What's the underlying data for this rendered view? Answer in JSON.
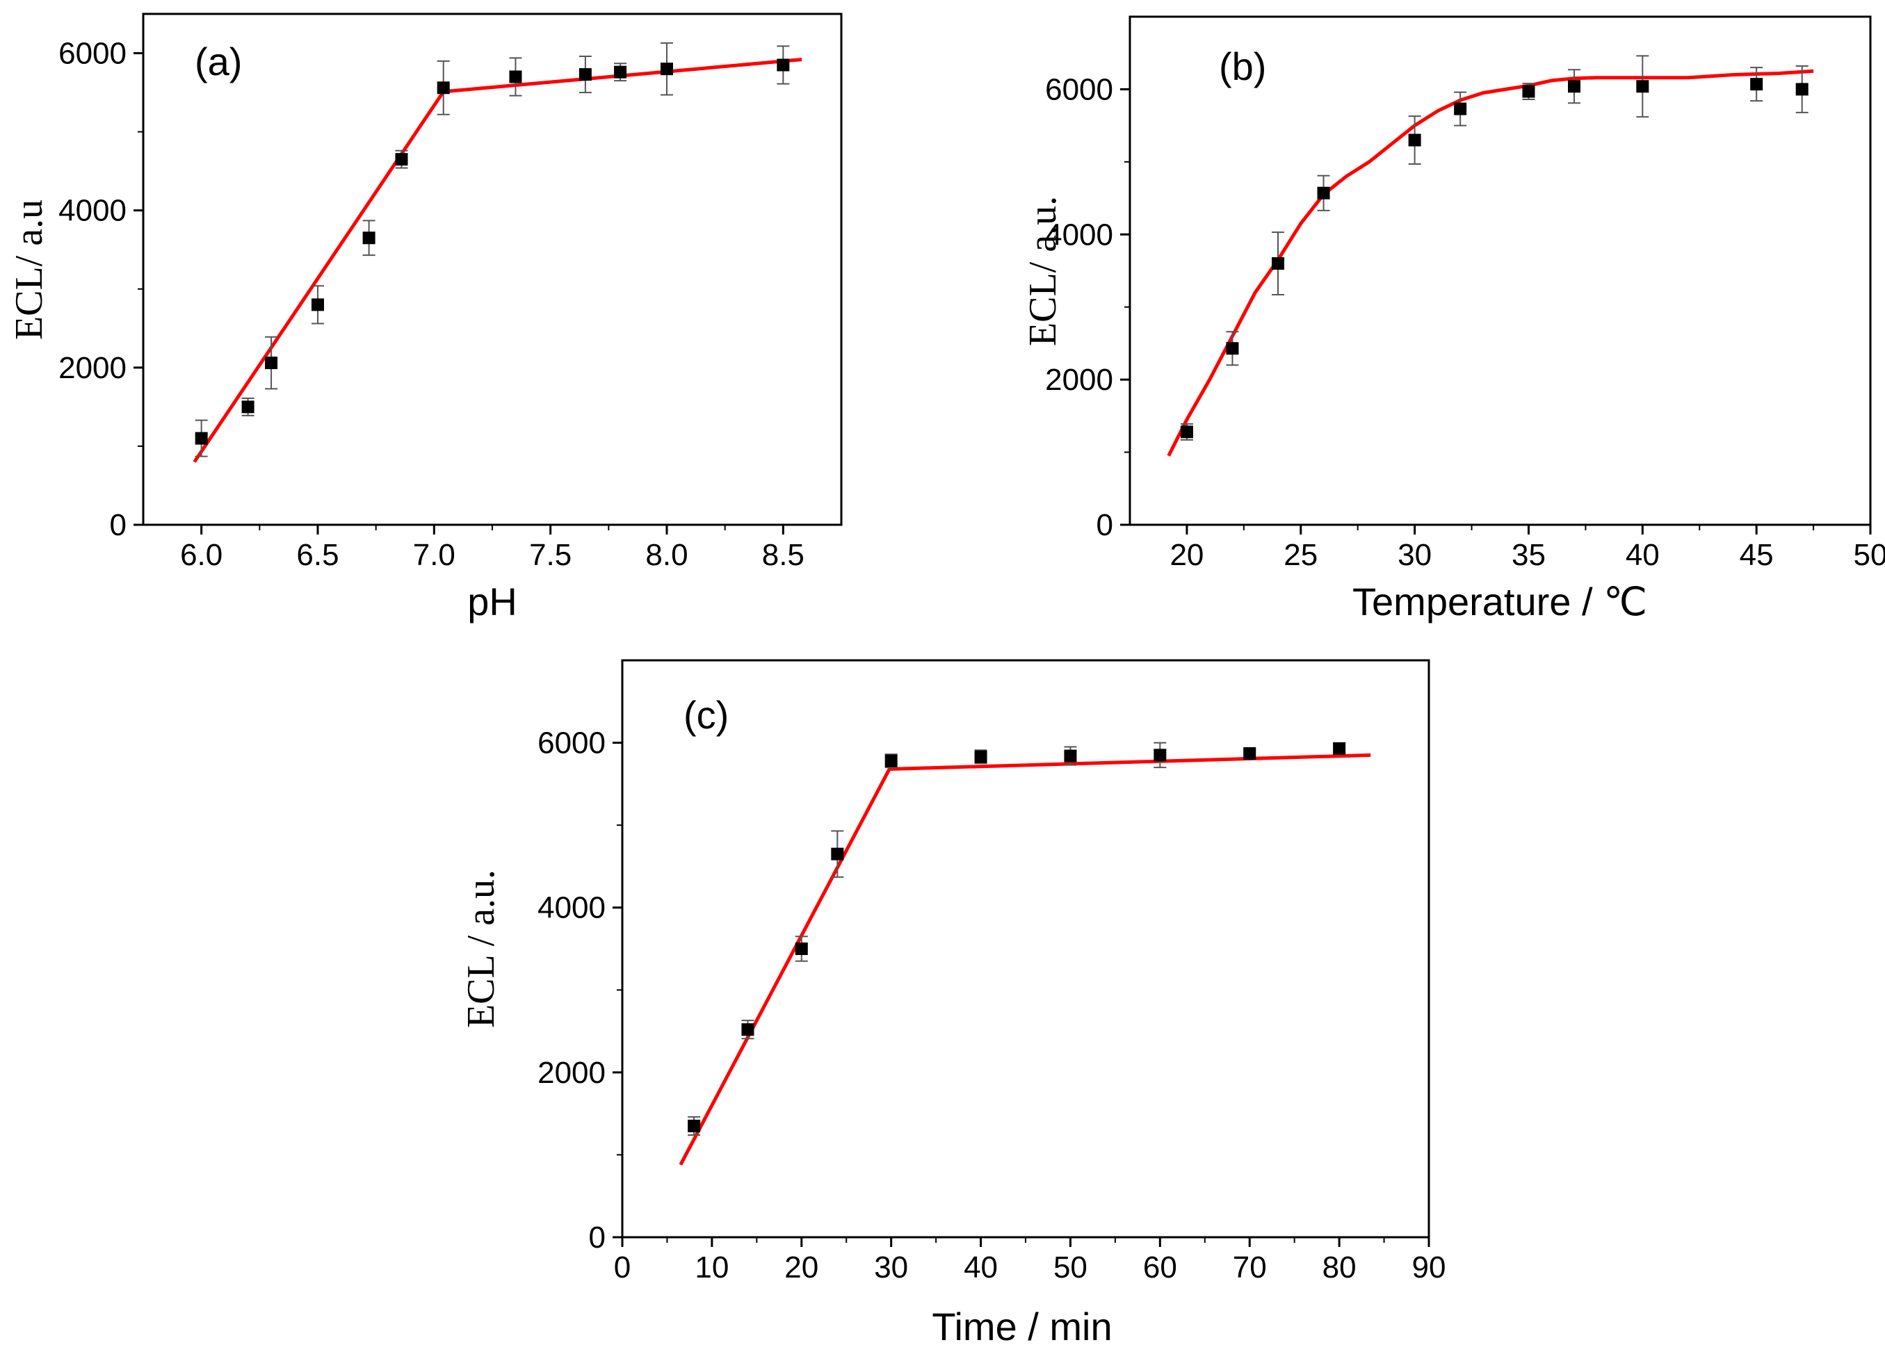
{
  "chart_data": [
    {
      "id": "a",
      "type": "scatter",
      "panel_label": "(a)",
      "xlabel": "pH",
      "ylabel": "ECL/ a.u",
      "xlim": [
        5.75,
        8.75
      ],
      "ylim": [
        0,
        6500
      ],
      "x_ticks": [
        6.0,
        6.5,
        7.0,
        7.5,
        8.0,
        8.5
      ],
      "x_tick_labels": [
        "6.0",
        "6.5",
        "7.0",
        "7.5",
        "8.0",
        "8.5"
      ],
      "y_ticks": [
        0,
        2000,
        4000,
        6000
      ],
      "y_tick_labels": [
        "0",
        "2000",
        "4000",
        "6000"
      ],
      "marker_color": "#000000",
      "fit_color": "#ff0000",
      "points": [
        {
          "x": 6.0,
          "y": 1100,
          "err": 230
        },
        {
          "x": 6.2,
          "y": 1500,
          "err": 110
        },
        {
          "x": 6.3,
          "y": 2060,
          "err": 330
        },
        {
          "x": 6.5,
          "y": 2800,
          "err": 240
        },
        {
          "x": 6.72,
          "y": 3650,
          "err": 220
        },
        {
          "x": 6.86,
          "y": 4650,
          "err": 110
        },
        {
          "x": 7.04,
          "y": 5560,
          "err": 340
        },
        {
          "x": 7.35,
          "y": 5700,
          "err": 240
        },
        {
          "x": 7.65,
          "y": 5730,
          "err": 230
        },
        {
          "x": 7.8,
          "y": 5760,
          "err": 110
        },
        {
          "x": 8.0,
          "y": 5800,
          "err": 330
        },
        {
          "x": 8.5,
          "y": 5850,
          "err": 240
        }
      ],
      "fit_line": [
        [
          5.97,
          800
        ],
        [
          7.04,
          5510
        ],
        [
          8.58,
          5920
        ]
      ]
    },
    {
      "id": "b",
      "type": "scatter",
      "panel_label": "(b)",
      "xlabel": "Temperature / ℃",
      "ylabel": "ECL/ a.u.",
      "xlim": [
        17.5,
        50
      ],
      "ylim": [
        0,
        7000
      ],
      "x_ticks": [
        20,
        25,
        30,
        35,
        40,
        45,
        50
      ],
      "x_tick_labels": [
        "20",
        "25",
        "30",
        "35",
        "40",
        "45",
        "50"
      ],
      "y_ticks": [
        0,
        2000,
        4000,
        6000
      ],
      "y_tick_labels": [
        "0",
        "2000",
        "4000",
        "6000"
      ],
      "marker_color": "#000000",
      "fit_color": "#ff0000",
      "points": [
        {
          "x": 20,
          "y": 1280,
          "err": 110
        },
        {
          "x": 22,
          "y": 2430,
          "err": 230
        },
        {
          "x": 24,
          "y": 3600,
          "err": 430
        },
        {
          "x": 26,
          "y": 4570,
          "err": 240
        },
        {
          "x": 30,
          "y": 5300,
          "err": 330
        },
        {
          "x": 32,
          "y": 5730,
          "err": 230
        },
        {
          "x": 35,
          "y": 5970,
          "err": 110
        },
        {
          "x": 37,
          "y": 6040,
          "err": 230
        },
        {
          "x": 40,
          "y": 6040,
          "err": 420
        },
        {
          "x": 45,
          "y": 6070,
          "err": 230
        },
        {
          "x": 47,
          "y": 6000,
          "err": 320
        }
      ],
      "fit_line": [
        [
          19.2,
          950
        ],
        [
          20,
          1450
        ],
        [
          21,
          2000
        ],
        [
          22,
          2600
        ],
        [
          23,
          3200
        ],
        [
          24,
          3650
        ],
        [
          25,
          4150
        ],
        [
          26,
          4550
        ],
        [
          27,
          4800
        ],
        [
          28,
          5000
        ],
        [
          29,
          5250
        ],
        [
          30,
          5500
        ],
        [
          31,
          5700
        ],
        [
          32,
          5850
        ],
        [
          33,
          5950
        ],
        [
          34,
          6000
        ],
        [
          35,
          6050
        ],
        [
          36,
          6120
        ],
        [
          37,
          6150
        ],
        [
          38,
          6160
        ],
        [
          40,
          6160
        ],
        [
          42,
          6160
        ],
        [
          44,
          6200
        ],
        [
          46,
          6220
        ],
        [
          47.5,
          6250
        ]
      ]
    },
    {
      "id": "c",
      "type": "scatter",
      "panel_label": "(c)",
      "xlabel": "Time / min",
      "ylabel": "ECL / a.u.",
      "xlim": [
        0,
        90
      ],
      "ylim": [
        0,
        7000
      ],
      "x_ticks": [
        0,
        10,
        20,
        30,
        40,
        50,
        60,
        70,
        80,
        90
      ],
      "x_tick_labels": [
        "0",
        "10",
        "20",
        "30",
        "40",
        "50",
        "60",
        "70",
        "80",
        "90"
      ],
      "y_ticks": [
        0,
        2000,
        4000,
        6000
      ],
      "y_tick_labels": [
        "0",
        "2000",
        "4000",
        "6000"
      ],
      "marker_color": "#000000",
      "fit_color": "#ff0000",
      "points": [
        {
          "x": 8,
          "y": 1350,
          "err": 110
        },
        {
          "x": 14,
          "y": 2520,
          "err": 110
        },
        {
          "x": 20,
          "y": 3500,
          "err": 150
        },
        {
          "x": 24,
          "y": 4650,
          "err": 280
        },
        {
          "x": 30,
          "y": 5780,
          "err": 80
        },
        {
          "x": 40,
          "y": 5830,
          "err": 80
        },
        {
          "x": 50,
          "y": 5840,
          "err": 110
        },
        {
          "x": 60,
          "y": 5850,
          "err": 150
        },
        {
          "x": 70,
          "y": 5870,
          "err": 40
        },
        {
          "x": 80,
          "y": 5930,
          "err": 60
        }
      ],
      "fit_line": [
        [
          6.5,
          880
        ],
        [
          29.8,
          5680
        ],
        [
          83.5,
          5850
        ]
      ]
    }
  ]
}
